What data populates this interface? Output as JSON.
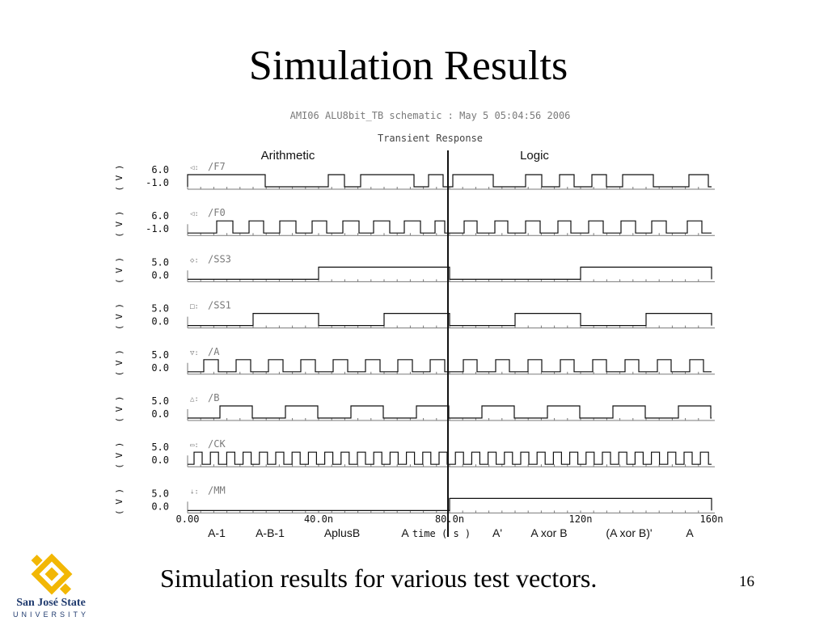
{
  "slide": {
    "title": "Simulation Results",
    "caption": "Simulation results for various test vectors.",
    "page_number": "16"
  },
  "waveform": {
    "header": "AMI06 ALU8bit_TB schematic : May  5 05:04:56 2006",
    "subheader": "Transient Response",
    "region_labels": [
      "Arithmetic",
      "Logic"
    ],
    "y_unit": "( V )",
    "time_ticks": [
      "0.00",
      "40.0n",
      "80.0n",
      "120n",
      "160n"
    ],
    "x_axis_label": "time ( s )",
    "test_vector_labels": [
      "A-1",
      "A-B-1",
      "AplusB",
      "A",
      "A'",
      "A xor B",
      "(A xor B)'",
      "A"
    ],
    "signals": [
      {
        "name": "/F7",
        "symbol": "◁:",
        "y_max": "6.0",
        "y_min": "-1.0"
      },
      {
        "name": "/F0",
        "symbol": "◁:",
        "y_max": "6.0",
        "y_min": "-1.0"
      },
      {
        "name": "/SS3",
        "symbol": "◇:",
        "y_max": "5.0",
        "y_min": "0.0"
      },
      {
        "name": "/SS1",
        "symbol": "□:",
        "y_max": "5.0",
        "y_min": "0.0"
      },
      {
        "name": "/A",
        "symbol": "▽:",
        "y_max": "5.0",
        "y_min": "0.0"
      },
      {
        "name": "/B",
        "symbol": "△:",
        "y_max": "5.0",
        "y_min": "0.0"
      },
      {
        "name": "/CK",
        "symbol": "▭:",
        "y_max": "5.0",
        "y_min": "0.0"
      },
      {
        "name": "/MM",
        "symbol": "⇣:",
        "y_max": "5.0",
        "y_min": "0.0"
      }
    ]
  },
  "logo": {
    "name_line1": "San José State",
    "name_line2": "UNIVERSITY",
    "color": "#f2b705"
  }
}
